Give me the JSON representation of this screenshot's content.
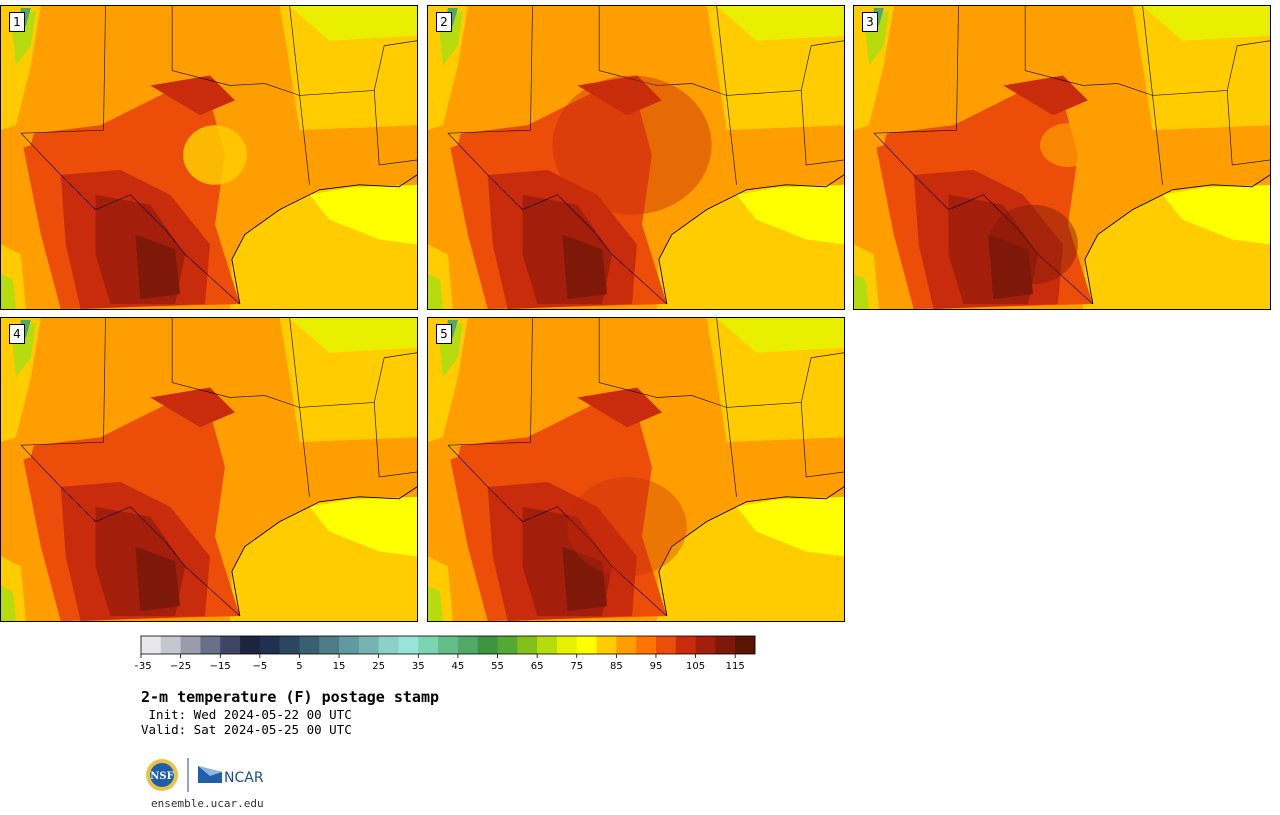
{
  "panels": [
    {
      "label": "1"
    },
    {
      "label": "2"
    },
    {
      "label": "3"
    },
    {
      "label": "4"
    },
    {
      "label": "5"
    }
  ],
  "colorbar": {
    "ticks": [
      "−35",
      "−25",
      "−15",
      "−5",
      "5",
      "15",
      "25",
      "35",
      "45",
      "55",
      "65",
      "75",
      "85",
      "95",
      "105",
      "115"
    ],
    "colors": [
      "#e8e8ec",
      "#c6c6d0",
      "#9a9cac",
      "#6a7088",
      "#3e4664",
      "#1c2440",
      "#1f3050",
      "#2a4660",
      "#3a6070",
      "#4e7c86",
      "#6298a0",
      "#76b4b4",
      "#8cd0c8",
      "#98e4d8",
      "#7cd4b0",
      "#64bc88",
      "#52a868",
      "#3e9440",
      "#55a832",
      "#84c01c",
      "#b6dc10",
      "#e8f200",
      "#ffff00",
      "#ffcc00",
      "#ff9e00",
      "#ff7400",
      "#ec4e0a",
      "#c82c0c",
      "#a41e0c",
      "#7e1808",
      "#5a1404"
    ]
  },
  "title": "2-m temperature (F) postage stamp",
  "init": " Init: Wed 2024-05-22 00 UTC",
  "valid": "Valid: Sat 2024-05-25 00 UTC",
  "logos": {
    "left": "NSF",
    "right": "NCAR"
  },
  "website": "ensemble.ucar.edu"
}
